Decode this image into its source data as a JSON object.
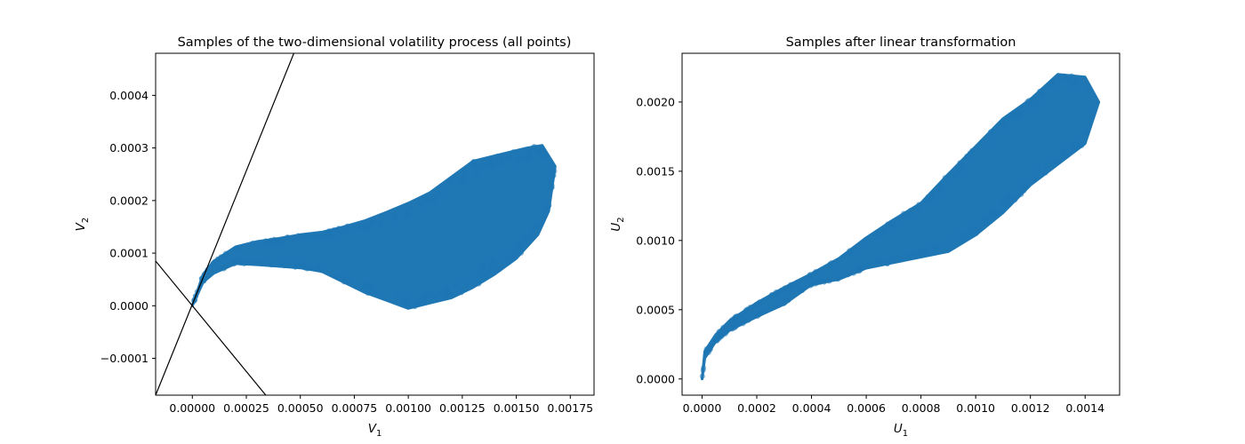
{
  "colors": {
    "points": "#1f77b4",
    "boundary_lines": "#000000",
    "axes": "#000000",
    "background": "#ffffff"
  },
  "chart_data": [
    {
      "type": "scatter",
      "title": "Samples of the two-dimensional volatility process (all points)",
      "xlabel": "V",
      "xlabel_sub": "1",
      "ylabel": "V",
      "ylabel_sub": "2",
      "xlim": [
        -0.00017,
        0.00186
      ],
      "ylim": [
        -0.00017,
        0.00048
      ],
      "xticks": [
        0.0,
        0.00025,
        0.0005,
        0.00075,
        0.001,
        0.00125,
        0.0015,
        0.00175
      ],
      "xtick_labels": [
        "0.00000",
        "0.00025",
        "0.00050",
        "0.00075",
        "0.00100",
        "0.00125",
        "0.00150",
        "0.00175"
      ],
      "yticks": [
        -0.0001,
        0.0,
        0.0001,
        0.0002,
        0.0003,
        0.0004
      ],
      "ytick_labels": [
        "−0.0001",
        "0.0000",
        "0.0001",
        "0.0002",
        "0.0003",
        "0.0004"
      ],
      "grid": false,
      "marker_alpha": 0.4,
      "cloud_outline_upper": [
        [
          0.0,
          0.0
        ],
        [
          5e-05,
          6e-05
        ],
        [
          0.0001,
          8.5e-05
        ],
        [
          0.0002,
          0.000112
        ],
        [
          0.0003,
          0.000122
        ],
        [
          0.0004,
          0.000128
        ],
        [
          0.0005,
          0.000135
        ],
        [
          0.0006,
          0.00014
        ],
        [
          0.0007,
          0.00015
        ],
        [
          0.0008,
          0.000162
        ],
        [
          0.0009,
          0.000178
        ],
        [
          0.001,
          0.000195
        ],
        [
          0.0011,
          0.000215
        ],
        [
          0.0012,
          0.000245
        ],
        [
          0.0013,
          0.000275
        ],
        [
          0.0014,
          0.000285
        ],
        [
          0.00155,
          0.0003
        ],
        [
          0.00162,
          0.000305
        ],
        [
          0.00168,
          0.000265
        ]
      ],
      "cloud_outline_lower": [
        [
          0.0,
          0.0
        ],
        [
          5e-05,
          4.5e-05
        ],
        [
          0.0001,
          6.2e-05
        ],
        [
          0.0002,
          8e-05
        ],
        [
          0.0003,
          7.8e-05
        ],
        [
          0.0004,
          7.5e-05
        ],
        [
          0.0005,
          7.2e-05
        ],
        [
          0.0006,
          6.5e-05
        ],
        [
          0.0007,
          4.5e-05
        ],
        [
          0.0008,
          2.5e-05
        ],
        [
          0.0009,
          1e-05
        ],
        [
          0.001,
          -5e-06
        ],
        [
          0.0011,
          5e-06
        ],
        [
          0.0012,
          1.5e-05
        ],
        [
          0.0013,
          3.5e-05
        ],
        [
          0.0014,
          6e-05
        ],
        [
          0.0015,
          9e-05
        ],
        [
          0.0016,
          0.000135
        ],
        [
          0.00165,
          0.00018
        ],
        [
          0.00168,
          0.000265
        ]
      ],
      "lines": [
        {
          "points": [
            [
              -0.00017,
              -0.00017
            ],
            [
              0.00047,
              0.00048
            ]
          ]
        },
        {
          "points": [
            [
              -0.00017,
              8.5e-05
            ],
            [
              0.00034,
              -0.00017
            ]
          ]
        }
      ]
    },
    {
      "type": "scatter",
      "title": "Samples after linear transformation",
      "xlabel": "U",
      "xlabel_sub": "1",
      "ylabel": "U",
      "ylabel_sub": "2",
      "xlim": [
        -7.3e-05,
        0.001526
      ],
      "ylim": [
        -0.000117,
        0.002352
      ],
      "xticks": [
        0.0,
        0.0002,
        0.0004,
        0.0006,
        0.0008,
        0.001,
        0.0012,
        0.0014
      ],
      "xtick_labels": [
        "0.0000",
        "0.0002",
        "0.0004",
        "0.0006",
        "0.0008",
        "0.0010",
        "0.0012",
        "0.0014"
      ],
      "yticks": [
        0.0,
        0.0005,
        0.001,
        0.0015,
        0.002
      ],
      "ytick_labels": [
        "0.0000",
        "0.0005",
        "0.0010",
        "0.0015",
        "0.0020"
      ],
      "grid": false,
      "marker_alpha": 0.4,
      "cloud_outline_upper": [
        [
          0.0,
          0.0
        ],
        [
          1e-05,
          0.0002
        ],
        [
          5e-05,
          0.00032
        ],
        [
          0.0001,
          0.00042
        ],
        [
          0.0002,
          0.00055
        ],
        [
          0.0003,
          0.00066
        ],
        [
          0.0004,
          0.00076
        ],
        [
          0.0005,
          0.00087
        ],
        [
          0.0006,
          0.00102
        ],
        [
          0.0007,
          0.00115
        ],
        [
          0.0008,
          0.00127
        ],
        [
          0.0009,
          0.00148
        ],
        [
          0.001,
          0.00168
        ],
        [
          0.0011,
          0.00188
        ],
        [
          0.0012,
          0.00202
        ],
        [
          0.0013,
          0.0022
        ],
        [
          0.0014,
          0.00218
        ],
        [
          0.00145,
          0.002
        ]
      ],
      "cloud_outline_lower": [
        [
          0.0,
          0.0
        ],
        [
          1e-05,
          0.00015
        ],
        [
          5e-05,
          0.00027
        ],
        [
          0.0001,
          0.00035
        ],
        [
          0.0002,
          0.00045
        ],
        [
          0.0003,
          0.00054
        ],
        [
          0.0004,
          0.00068
        ],
        [
          0.0005,
          0.00072
        ],
        [
          0.0006,
          0.0008
        ],
        [
          0.0007,
          0.00084
        ],
        [
          0.0008,
          0.00088
        ],
        [
          0.0009,
          0.00092
        ],
        [
          0.001,
          0.00104
        ],
        [
          0.0011,
          0.0012
        ],
        [
          0.0012,
          0.0014
        ],
        [
          0.0013,
          0.00155
        ],
        [
          0.0014,
          0.0017
        ],
        [
          0.00145,
          0.002
        ]
      ]
    }
  ]
}
